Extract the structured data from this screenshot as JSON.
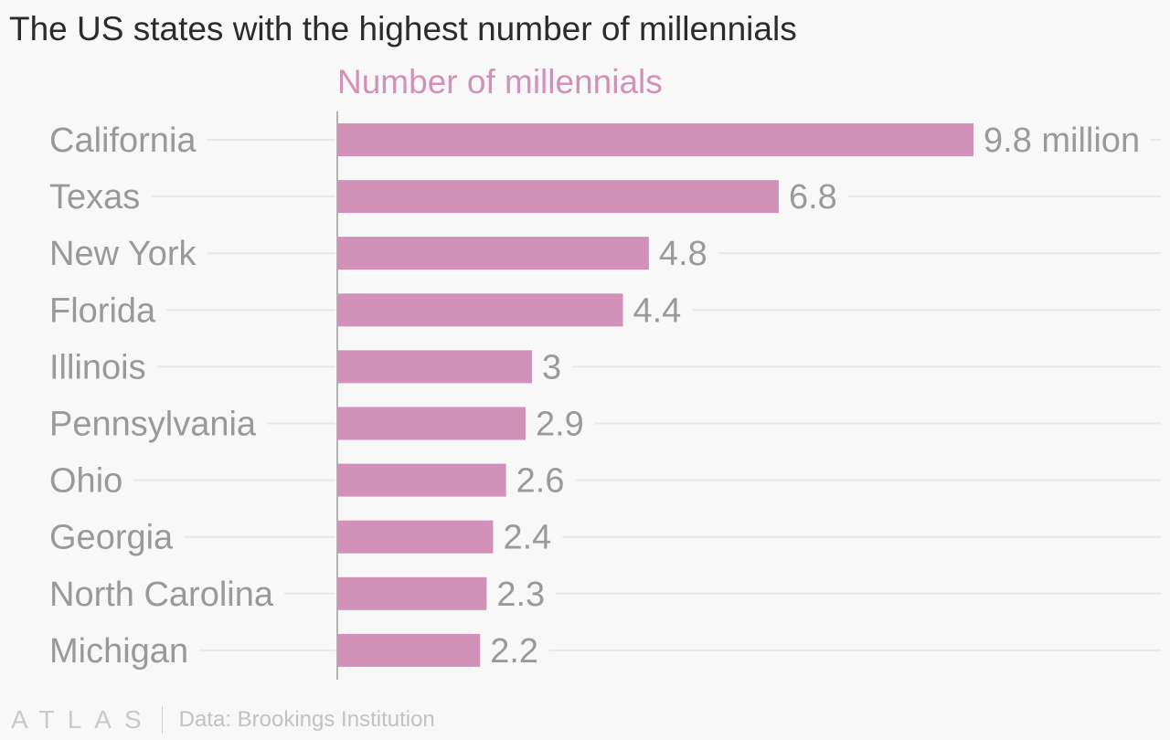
{
  "chart_data": {
    "type": "bar",
    "orientation": "horizontal",
    "title": "The US states with the highest number of millennials",
    "series": [
      {
        "name": "Number of millennials",
        "color": "#d291b8",
        "values": [
          9.8,
          6.8,
          4.8,
          4.4,
          3,
          2.9,
          2.6,
          2.4,
          2.3,
          2.2
        ],
        "value_labels": [
          "9.8 million",
          "6.8",
          "4.8",
          "4.4",
          "3",
          "2.9",
          "2.6",
          "2.4",
          "2.3",
          "2.2"
        ]
      }
    ],
    "categories": [
      "California",
      "Texas",
      "New York",
      "Florida",
      "Illinois",
      "Pennsylvania",
      "Ohio",
      "Georgia",
      "North Carolina",
      "Michigan"
    ],
    "xlim": [
      0,
      9.8
    ],
    "grid": true
  },
  "footer": {
    "logo": "ATLAS",
    "source": "Data: Brookings Institution"
  }
}
